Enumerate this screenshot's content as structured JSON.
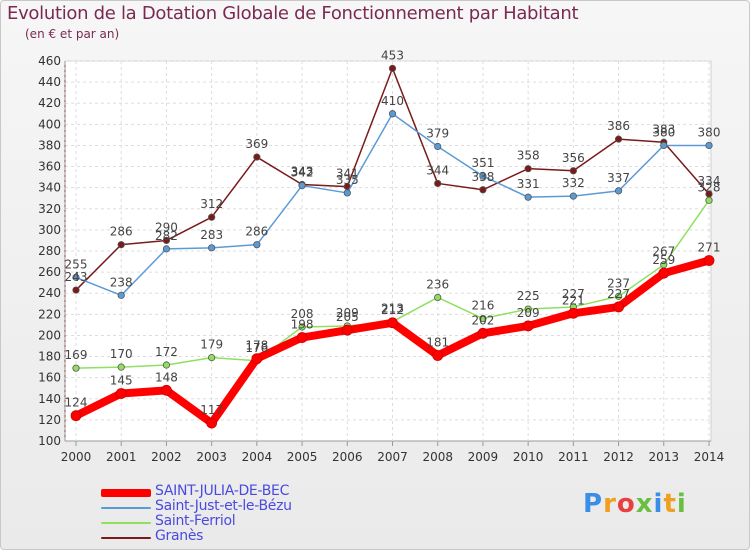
{
  "title": "Evolution de la Dotation Globale de Fonctionnement par Habitant",
  "subtitle": "(en € et par an)",
  "logo": {
    "text": "Proxiti",
    "colors": [
      "#3a8ee6",
      "#f0a020",
      "#e84040",
      "#6abf40",
      "#3a8ee6",
      "#f0a020",
      "#6abf40"
    ]
  },
  "chart_data": {
    "type": "line",
    "title": "Evolution de la Dotation Globale de Fonctionnement par Habitant",
    "subtitle": "(en € et par an)",
    "x": [
      "2000",
      "2001",
      "2002",
      "2003",
      "2004",
      "2005",
      "2006",
      "2007",
      "2008",
      "2009",
      "2010",
      "2011",
      "2012",
      "2013",
      "2014"
    ],
    "ylim": [
      100,
      460
    ],
    "yticks": [
      100,
      120,
      140,
      160,
      180,
      200,
      220,
      240,
      260,
      280,
      300,
      320,
      340,
      360,
      380,
      400,
      420,
      440,
      460
    ],
    "grid": true,
    "legend_position": "bottom-left",
    "series": [
      {
        "name": "SAINT-JULIA-DE-BEC",
        "color": "#ff0000",
        "values": [
          124,
          145,
          148,
          117,
          178,
          198,
          205,
          212,
          181,
          202,
          209,
          221,
          227,
          259,
          271
        ]
      },
      {
        "name": "Saint-Just-et-le-Bézu",
        "color": "#5b9bd5",
        "values": [
          255,
          238,
          282,
          283,
          286,
          342,
          335,
          410,
          379,
          351,
          331,
          332,
          337,
          380,
          380
        ]
      },
      {
        "name": "Saint-Ferriol",
        "color": "#90e060",
        "values": [
          169,
          170,
          172,
          179,
          176,
          208,
          209,
          213,
          236,
          216,
          225,
          227,
          237,
          267,
          328
        ]
      },
      {
        "name": "Granès",
        "color": "#7a1a1a",
        "values": [
          243,
          286,
          290,
          312,
          369,
          343,
          341,
          453,
          344,
          338,
          358,
          356,
          386,
          383,
          334
        ]
      }
    ]
  }
}
